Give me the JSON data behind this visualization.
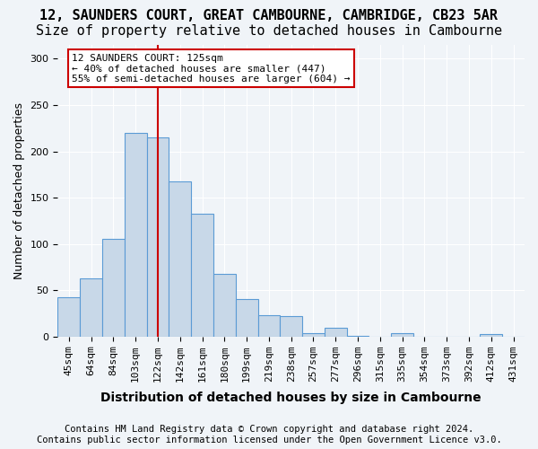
{
  "title_line1": "12, SAUNDERS COURT, GREAT CAMBOURNE, CAMBRIDGE, CB23 5AR",
  "title_line2": "Size of property relative to detached houses in Cambourne",
  "xlabel": "Distribution of detached houses by size in Cambourne",
  "ylabel": "Number of detached properties",
  "categories": [
    "45sqm",
    "64sqm",
    "84sqm",
    "103sqm",
    "122sqm",
    "142sqm",
    "161sqm",
    "180sqm",
    "199sqm",
    "219sqm",
    "238sqm",
    "257sqm",
    "277sqm",
    "296sqm",
    "315sqm",
    "335sqm",
    "354sqm",
    "373sqm",
    "392sqm",
    "412sqm",
    "431sqm"
  ],
  "values": [
    42,
    63,
    105,
    220,
    215,
    168,
    133,
    68,
    40,
    23,
    22,
    4,
    9,
    1,
    0,
    4,
    0,
    0,
    0,
    3,
    0
  ],
  "bar_color": "#c8d8e8",
  "bar_edge_color": "#5b9bd5",
  "property_line_x": 4,
  "property_sqm": 125,
  "annotation_text_line1": "12 SAUNDERS COURT: 125sqm",
  "annotation_text_line2": "← 40% of detached houses are smaller (447)",
  "annotation_text_line3": "55% of semi-detached houses are larger (604) →",
  "annotation_box_color": "#ffffff",
  "annotation_box_edge_color": "#cc0000",
  "property_line_color": "#cc0000",
  "ylim": [
    0,
    315
  ],
  "yticks": [
    0,
    50,
    100,
    150,
    200,
    250,
    300
  ],
  "footnote_line1": "Contains HM Land Registry data © Crown copyright and database right 2024.",
  "footnote_line2": "Contains public sector information licensed under the Open Government Licence v3.0.",
  "background_color": "#f0f4f8",
  "grid_color": "#ffffff",
  "title1_fontsize": 11,
  "title2_fontsize": 11,
  "xlabel_fontsize": 10,
  "ylabel_fontsize": 9,
  "tick_fontsize": 8,
  "footnote_fontsize": 7.5
}
